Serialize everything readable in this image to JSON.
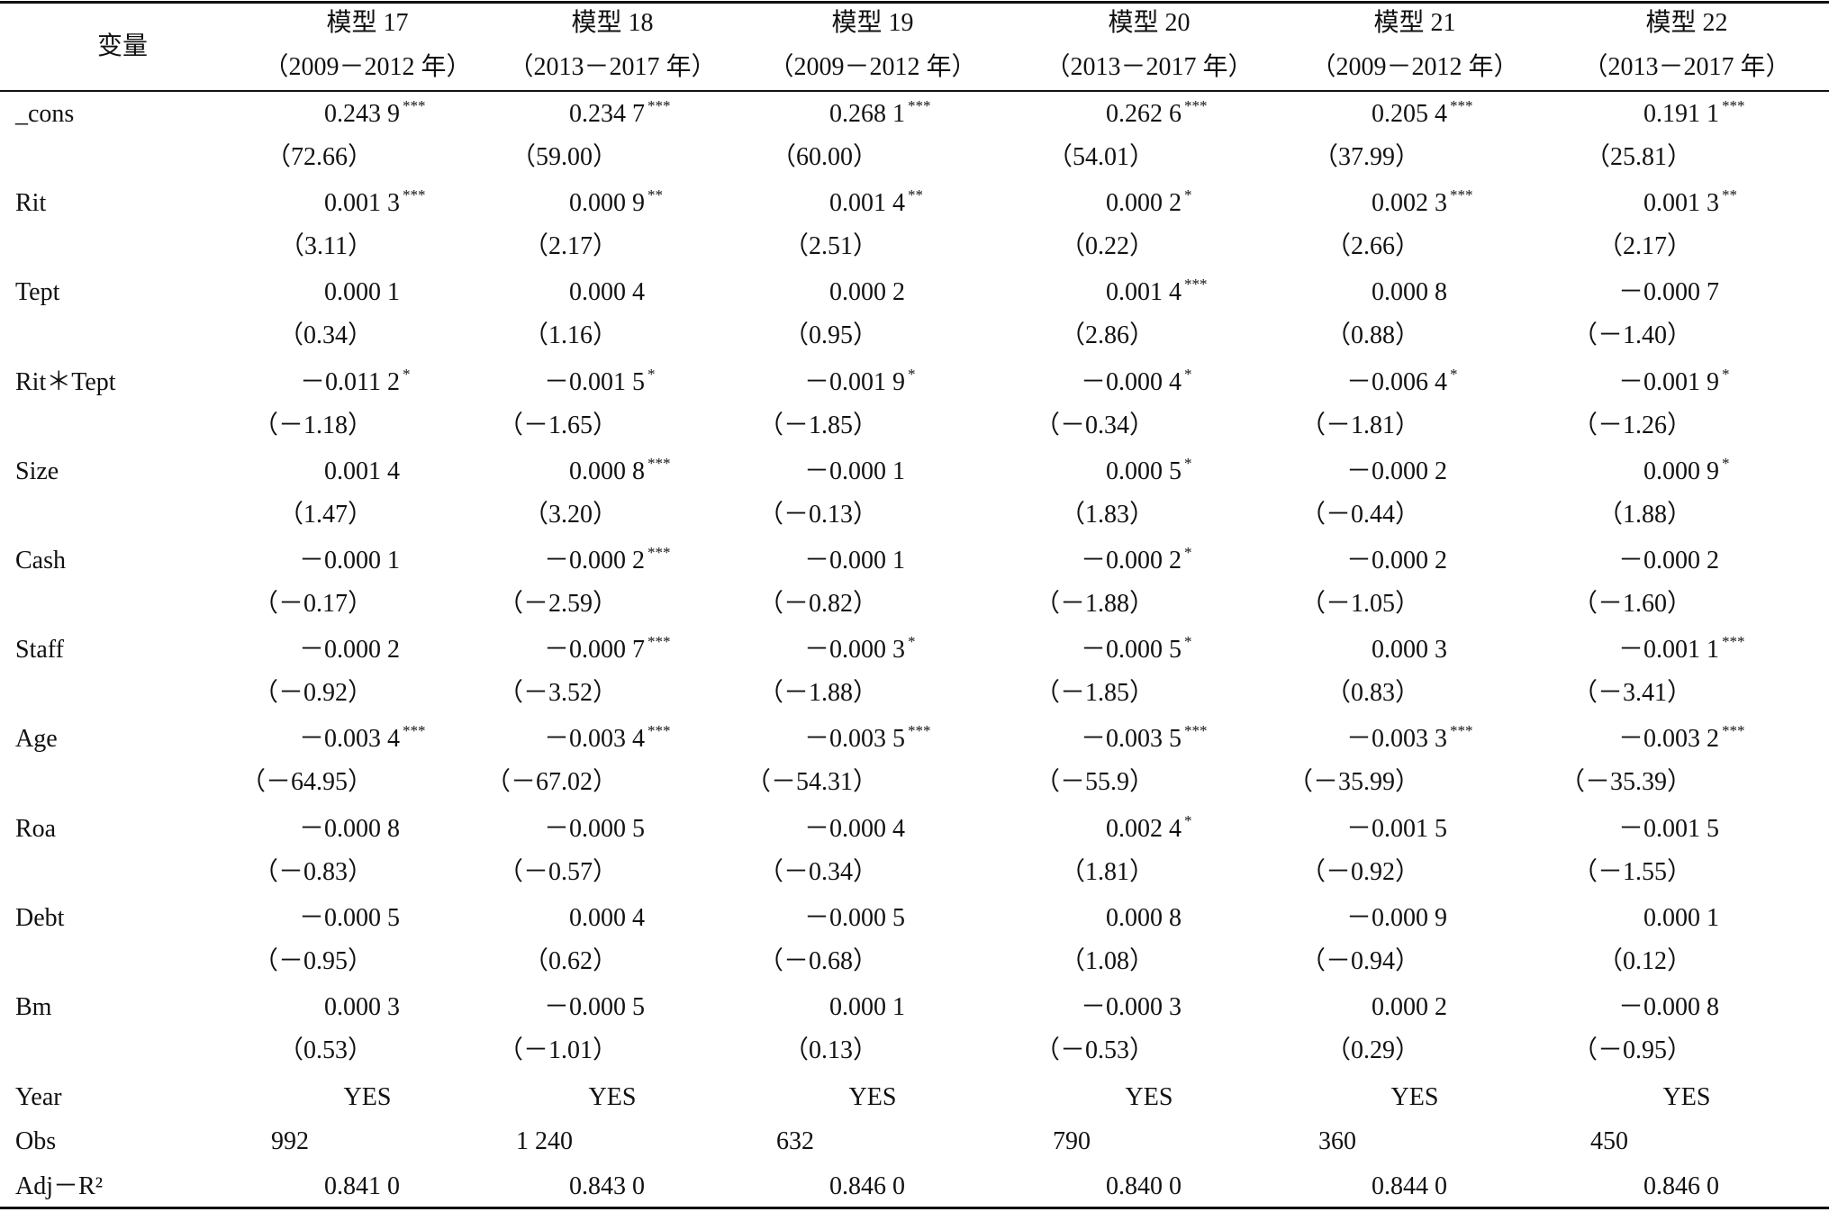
{
  "header": {
    "variable": "变量",
    "models": [
      {
        "name": "模型 17",
        "period": "（2009－2012 年）"
      },
      {
        "name": "模型 18",
        "period": "（2013－2017 年）"
      },
      {
        "name": "模型 19",
        "period": "（2009－2012 年）"
      },
      {
        "name": "模型 20",
        "period": "（2013－2017 年）"
      },
      {
        "name": "模型 21",
        "period": "（2009－2012 年）"
      },
      {
        "name": "模型 22",
        "period": "（2013－2017 年）"
      }
    ]
  },
  "rows": [
    {
      "label": "_cons",
      "cells": [
        {
          "coef": "0.243 9",
          "stars": "***",
          "t": "（72.66）"
        },
        {
          "coef": "0.234 7",
          "stars": "***",
          "t": "（59.00）"
        },
        {
          "coef": "0.268 1",
          "stars": "***",
          "t": "（60.00）"
        },
        {
          "coef": "0.262 6",
          "stars": "***",
          "t": "（54.01）"
        },
        {
          "coef": "0.205 4",
          "stars": "***",
          "t": "（37.99）"
        },
        {
          "coef": "0.191 1",
          "stars": "***",
          "t": "（25.81）"
        }
      ]
    },
    {
      "label": "Rit",
      "cells": [
        {
          "coef": "0.001 3",
          "stars": "***",
          "t": "（3.11）"
        },
        {
          "coef": "0.000 9",
          "stars": "**",
          "t": "（2.17）"
        },
        {
          "coef": "0.001 4",
          "stars": "**",
          "t": "（2.51）"
        },
        {
          "coef": "0.000 2",
          "stars": "*",
          "t": "（0.22）"
        },
        {
          "coef": "0.002 3",
          "stars": "***",
          "t": "（2.66）"
        },
        {
          "coef": "0.001 3",
          "stars": "**",
          "t": "（2.17）"
        }
      ]
    },
    {
      "label": "Tept",
      "cells": [
        {
          "coef": "0.000 1",
          "t": "（0.34）"
        },
        {
          "coef": "0.000 4",
          "t": "（1.16）"
        },
        {
          "coef": "0.000 2",
          "t": "（0.95）"
        },
        {
          "coef": "0.001 4",
          "stars": "***",
          "t": "（2.86）"
        },
        {
          "coef": "0.000 8",
          "t": "（0.88）"
        },
        {
          "coef": "－0.000 7",
          "t": "（－1.40）"
        }
      ]
    },
    {
      "label": "Rit＊Tept",
      "cells": [
        {
          "coef": "－0.011 2",
          "stars": "*",
          "t": "（－1.18）"
        },
        {
          "coef": "－0.001 5",
          "stars": "*",
          "t": "（－1.65）"
        },
        {
          "coef": "－0.001 9",
          "stars": "*",
          "t": "（－1.85）"
        },
        {
          "coef": "－0.000 4",
          "stars": "*",
          "t": "（－0.34）"
        },
        {
          "coef": "－0.006 4",
          "stars": "*",
          "t": "（－1.81）"
        },
        {
          "coef": "－0.001 9",
          "stars": "*",
          "t": "（－1.26）"
        }
      ]
    },
    {
      "label": "Size",
      "cells": [
        {
          "coef": "0.001 4",
          "t": "（1.47）"
        },
        {
          "coef": "0.000 8",
          "stars": "***",
          "t": "（3.20）"
        },
        {
          "coef": "－0.000 1",
          "t": "（－0.13）"
        },
        {
          "coef": "0.000 5",
          "stars": "*",
          "t": "（1.83）"
        },
        {
          "coef": "－0.000 2",
          "t": "（－0.44）"
        },
        {
          "coef": "0.000 9",
          "stars": "*",
          "t": "（1.88）"
        }
      ]
    },
    {
      "label": "Cash",
      "cells": [
        {
          "coef": "－0.000 1",
          "t": "（－0.17）"
        },
        {
          "coef": "－0.000 2",
          "stars": "***",
          "t": "（－2.59）"
        },
        {
          "coef": "－0.000 1",
          "t": "（－0.82）"
        },
        {
          "coef": "－0.000 2",
          "stars": "*",
          "t": "（－1.88）"
        },
        {
          "coef": "－0.000 2",
          "t": "（－1.05）"
        },
        {
          "coef": "－0.000 2",
          "t": "（－1.60）"
        }
      ]
    },
    {
      "label": "Staff",
      "cells": [
        {
          "coef": "－0.000 2",
          "t": "（－0.92）"
        },
        {
          "coef": "－0.000 7",
          "stars": "***",
          "t": "（－3.52）"
        },
        {
          "coef": "－0.000 3",
          "stars": "*",
          "t": "（－1.88）"
        },
        {
          "coef": "－0.000 5",
          "stars": "*",
          "t": "（－1.85）"
        },
        {
          "coef": "0.000 3",
          "t": "（0.83）"
        },
        {
          "coef": "－0.001 1",
          "stars": "***",
          "t": "（－3.41）"
        }
      ]
    },
    {
      "label": "Age",
      "cells": [
        {
          "coef": "－0.003 4",
          "stars": "***",
          "t": "（－64.95）"
        },
        {
          "coef": "－0.003 4",
          "stars": "***",
          "t": "（－67.02）"
        },
        {
          "coef": "－0.003 5",
          "stars": "***",
          "t": "（－54.31）"
        },
        {
          "coef": "－0.003 5",
          "stars": "***",
          "t": "（－55.9）"
        },
        {
          "coef": "－0.003 3",
          "stars": "***",
          "t": "（－35.99）"
        },
        {
          "coef": "－0.003 2",
          "stars": "***",
          "t": "（－35.39）"
        }
      ]
    },
    {
      "label": "Roa",
      "cells": [
        {
          "coef": "－0.000 8",
          "t": "（－0.83）"
        },
        {
          "coef": "－0.000 5",
          "t": "（－0.57）"
        },
        {
          "coef": "－0.000 4",
          "t": "（－0.34）"
        },
        {
          "coef": "0.002 4",
          "stars": "*",
          "t": "（1.81）"
        },
        {
          "coef": "－0.001 5",
          "t": "（－0.92）"
        },
        {
          "coef": "－0.001 5",
          "t": "（－1.55）"
        }
      ]
    },
    {
      "label": "Debt",
      "cells": [
        {
          "coef": "－0.000 5",
          "t": "（－0.95）"
        },
        {
          "coef": "0.000 4",
          "t": "（0.62）"
        },
        {
          "coef": "－0.000 5",
          "t": "（－0.68）"
        },
        {
          "coef": "0.000 8",
          "t": "（1.08）"
        },
        {
          "coef": "－0.000 9",
          "t": "（－0.94）"
        },
        {
          "coef": "0.000 1",
          "t": "（0.12）"
        }
      ]
    },
    {
      "label": "Bm",
      "cells": [
        {
          "coef": "0.000 3",
          "t": "（0.53）"
        },
        {
          "coef": "－0.000 5",
          "t": "（－1.01）"
        },
        {
          "coef": "0.000 1",
          "t": "（0.13）"
        },
        {
          "coef": "－0.000 3",
          "t": "（－0.53）"
        },
        {
          "coef": "0.000 2",
          "t": "（0.29）"
        },
        {
          "coef": "－0.000 8",
          "t": "（－0.95）"
        }
      ]
    }
  ],
  "summary": [
    {
      "label": "Year",
      "values": [
        "YES",
        "YES",
        "YES",
        "YES",
        "YES",
        "YES"
      ],
      "align": "center"
    },
    {
      "label": "Obs",
      "values": [
        "992",
        "1 240",
        "632",
        "790",
        "360",
        "450"
      ],
      "align": "left"
    },
    {
      "label": "Adj－R²",
      "values": [
        "0.841 0",
        "0.843 0",
        "0.846 0",
        "0.840 0",
        "0.844 0",
        "0.846 0"
      ],
      "align": "right"
    }
  ]
}
